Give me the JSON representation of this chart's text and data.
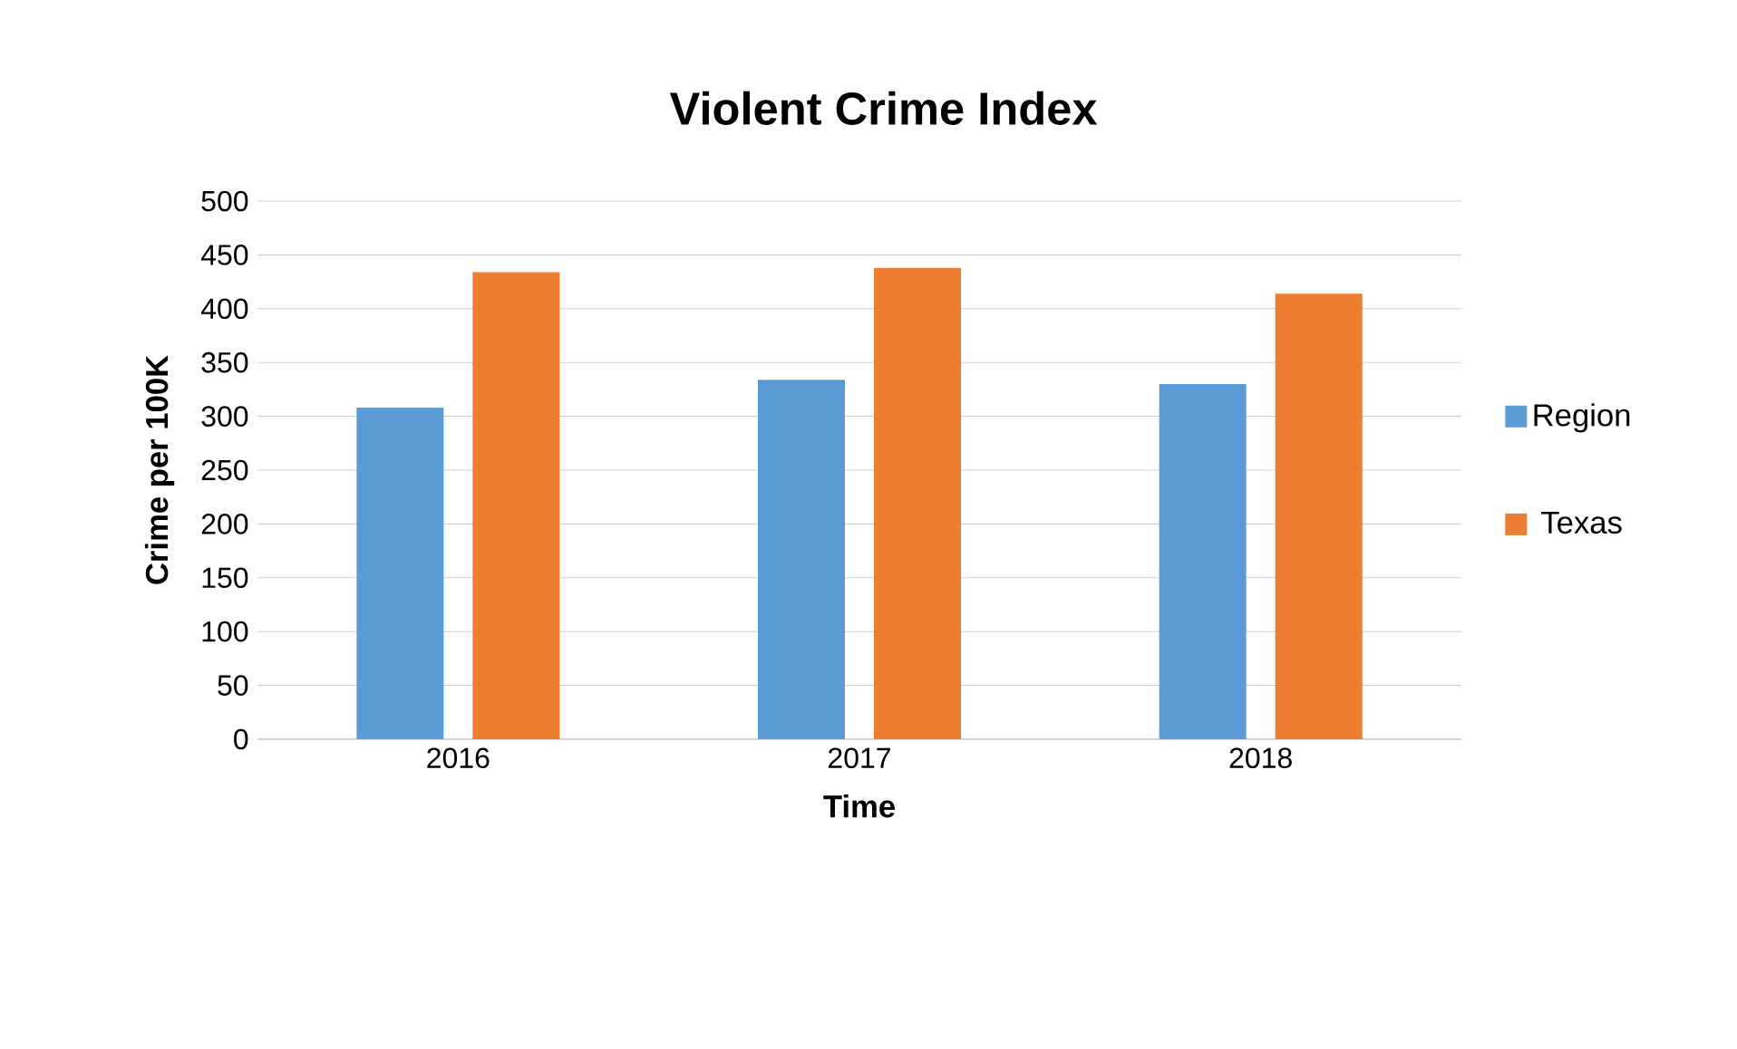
{
  "chart_data": {
    "type": "bar",
    "title": "Violent Crime Index",
    "xlabel": "Time",
    "ylabel": "Crime per 100K",
    "categories": [
      "2016",
      "2017",
      "2018"
    ],
    "series": [
      {
        "name": "Region",
        "color": "#5b9bd5",
        "values": [
          308,
          334,
          330
        ]
      },
      {
        "name": "Texas",
        "color": "#ed7d31",
        "values": [
          434,
          438,
          414
        ]
      }
    ],
    "ylim": [
      0,
      500
    ],
    "yticks": [
      0,
      50,
      100,
      150,
      200,
      250,
      300,
      350,
      400,
      450,
      500
    ],
    "grid": "y",
    "legend": "right"
  }
}
